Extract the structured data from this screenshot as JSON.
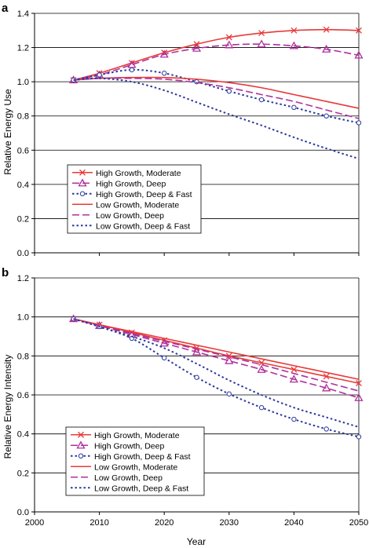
{
  "panels": [
    {
      "label": "a"
    },
    {
      "label": "b"
    }
  ],
  "chart_data": [
    {
      "type": "line",
      "panel": "a",
      "title": "",
      "xlabel": "",
      "ylabel": "Relative Energy Use",
      "xlim": [
        2000,
        2050
      ],
      "ylim": [
        0,
        1.4
      ],
      "yticks": [
        "0.0",
        "0.2",
        "0.4",
        "0.6",
        "0.8",
        "1.0",
        "1.2",
        "1.4"
      ],
      "grid": "horizontal",
      "legend_position": "bottom-left",
      "series": [
        {
          "name": "High Growth, Moderate",
          "color": "#e83a3a",
          "style": "solid",
          "marker": "x",
          "x": [
            2006,
            2010,
            2015,
            2020,
            2025,
            2030,
            2035,
            2040,
            2045,
            2050
          ],
          "values": [
            1.01,
            1.05,
            1.11,
            1.17,
            1.22,
            1.26,
            1.285,
            1.3,
            1.305,
            1.3
          ]
        },
        {
          "name": "High Growth, Deep",
          "color": "#b0309e",
          "style": "longdash",
          "marker": "triangle",
          "x": [
            2006,
            2010,
            2015,
            2020,
            2025,
            2030,
            2035,
            2040,
            2045,
            2050
          ],
          "values": [
            1.01,
            1.04,
            1.1,
            1.16,
            1.195,
            1.215,
            1.22,
            1.21,
            1.19,
            1.155
          ]
        },
        {
          "name": "High Growth, Deep & Fast",
          "color": "#2a3a9c",
          "style": "dotted",
          "marker": "circle",
          "x": [
            2006,
            2010,
            2015,
            2020,
            2025,
            2030,
            2035,
            2040,
            2045,
            2050
          ],
          "values": [
            1.01,
            1.04,
            1.07,
            1.05,
            1.0,
            0.945,
            0.895,
            0.85,
            0.8,
            0.76
          ]
        },
        {
          "name": "Low Growth, Moderate",
          "color": "#e83a3a",
          "style": "solid",
          "marker": "none",
          "x": [
            2006,
            2010,
            2015,
            2020,
            2025,
            2030,
            2035,
            2040,
            2045,
            2050
          ],
          "values": [
            1.01,
            1.02,
            1.025,
            1.025,
            1.015,
            0.995,
            0.965,
            0.925,
            0.885,
            0.845
          ]
        },
        {
          "name": "Low Growth, Deep",
          "color": "#b0309e",
          "style": "longdash",
          "marker": "none",
          "x": [
            2006,
            2010,
            2015,
            2020,
            2025,
            2030,
            2035,
            2040,
            2045,
            2050
          ],
          "values": [
            1.01,
            1.02,
            1.02,
            1.015,
            0.995,
            0.965,
            0.925,
            0.885,
            0.835,
            0.785
          ]
        },
        {
          "name": "Low Growth, Deep & Fast",
          "color": "#2a3a9c",
          "style": "dotted",
          "marker": "none",
          "x": [
            2006,
            2010,
            2015,
            2020,
            2025,
            2030,
            2035,
            2040,
            2045,
            2050
          ],
          "values": [
            1.01,
            1.02,
            1.0,
            0.95,
            0.88,
            0.81,
            0.745,
            0.675,
            0.61,
            0.55
          ]
        }
      ]
    },
    {
      "type": "line",
      "panel": "b",
      "title": "",
      "xlabel": "Year",
      "ylabel": "Relative Energy Intensity",
      "xlim": [
        2000,
        2050
      ],
      "ylim": [
        0,
        1.2
      ],
      "xticks": [
        "2000",
        "2010",
        "2020",
        "2030",
        "2040",
        "2050"
      ],
      "yticks": [
        "0.0",
        "0.2",
        "0.4",
        "0.6",
        "0.8",
        "1.0",
        "1.2"
      ],
      "grid": "horizontal",
      "legend_position": "bottom-left",
      "series": [
        {
          "name": "High Growth, Moderate",
          "color": "#e83a3a",
          "style": "solid",
          "marker": "x",
          "x": [
            2006,
            2010,
            2015,
            2020,
            2025,
            2030,
            2035,
            2040,
            2045,
            2050
          ],
          "values": [
            0.99,
            0.96,
            0.92,
            0.88,
            0.84,
            0.8,
            0.765,
            0.73,
            0.695,
            0.66
          ]
        },
        {
          "name": "High Growth, Deep",
          "color": "#b0309e",
          "style": "longdash",
          "marker": "triangle",
          "x": [
            2006,
            2010,
            2015,
            2020,
            2025,
            2030,
            2035,
            2040,
            2045,
            2050
          ],
          "values": [
            0.99,
            0.955,
            0.91,
            0.865,
            0.82,
            0.775,
            0.73,
            0.68,
            0.635,
            0.585
          ]
        },
        {
          "name": "High Growth, Deep & Fast",
          "color": "#2a3a9c",
          "style": "dotted",
          "marker": "circle",
          "x": [
            2006,
            2010,
            2015,
            2020,
            2025,
            2030,
            2035,
            2040,
            2045,
            2050
          ],
          "values": [
            0.99,
            0.95,
            0.89,
            0.79,
            0.69,
            0.605,
            0.535,
            0.475,
            0.425,
            0.385
          ]
        },
        {
          "name": "Low Growth, Moderate",
          "color": "#e83a3a",
          "style": "solid",
          "marker": "none",
          "x": [
            2006,
            2010,
            2015,
            2020,
            2025,
            2030,
            2035,
            2040,
            2045,
            2050
          ],
          "values": [
            0.99,
            0.96,
            0.925,
            0.89,
            0.855,
            0.82,
            0.785,
            0.75,
            0.715,
            0.68
          ]
        },
        {
          "name": "Low Growth, Deep",
          "color": "#b0309e",
          "style": "longdash",
          "marker": "none",
          "x": [
            2006,
            2010,
            2015,
            2020,
            2025,
            2030,
            2035,
            2040,
            2045,
            2050
          ],
          "values": [
            0.99,
            0.955,
            0.915,
            0.875,
            0.835,
            0.795,
            0.755,
            0.71,
            0.665,
            0.62
          ]
        },
        {
          "name": "Low Growth, Deep & Fast",
          "color": "#2a3a9c",
          "style": "dotted",
          "marker": "none",
          "x": [
            2006,
            2010,
            2015,
            2020,
            2025,
            2030,
            2035,
            2040,
            2045,
            2050
          ],
          "values": [
            0.99,
            0.95,
            0.9,
            0.84,
            0.76,
            0.675,
            0.6,
            0.535,
            0.485,
            0.435
          ]
        }
      ]
    }
  ]
}
